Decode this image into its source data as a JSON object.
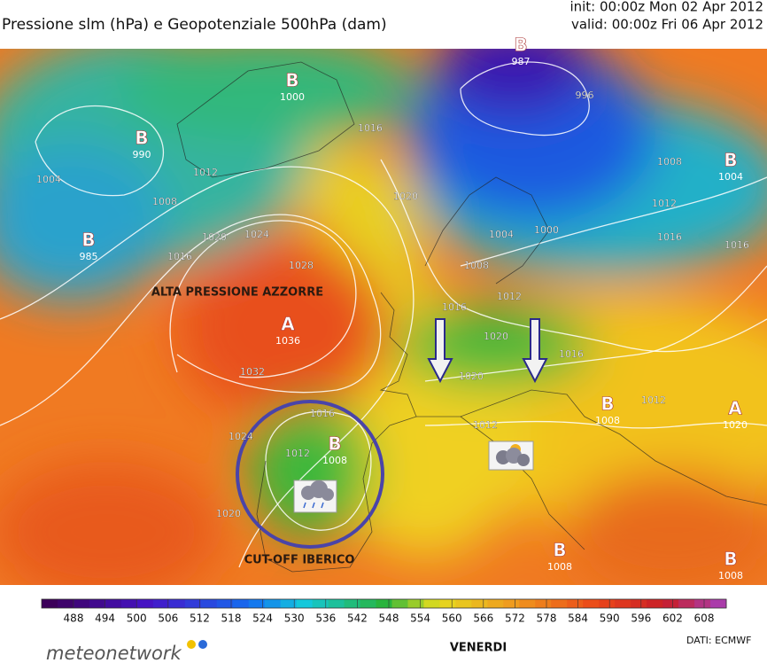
{
  "header": {
    "title": "Pressione slm (hPa) e Geopotenziale 500hPa (dam)",
    "init": "init: 00:00z Mon 02 Apr 2012",
    "valid": "valid: 00:00z Fri 06 Apr 2012"
  },
  "pressure_centers": [
    {
      "letter": "B",
      "value": 987
    },
    {
      "letter": "B",
      "value": 1000
    },
    {
      "letter": "B",
      "value": 990
    },
    {
      "letter": "B",
      "value": 985
    },
    {
      "letter": "B",
      "value": 1004
    },
    {
      "letter": "A",
      "value": 1036
    },
    {
      "letter": "B",
      "value": 1008
    },
    {
      "letter": "B",
      "value": 1008
    },
    {
      "letter": "A",
      "value": 1020
    },
    {
      "letter": "B",
      "value": 1008
    },
    {
      "letter": "B",
      "value": 1008
    }
  ],
  "isobar_labels": [
    1004,
    1008,
    1012,
    1016,
    1020,
    1024,
    1028,
    1032,
    1016,
    1020,
    1016,
    1020,
    1016,
    1020,
    1012,
    1012,
    1008,
    1004,
    1000,
    1008,
    1012,
    1016,
    1016,
    1016,
    1012,
    1020,
    1024,
    996,
    1012
  ],
  "annotations": {
    "high": "ALTA PRESSIONE AZZORRE",
    "cutoff": "CUT-OFF IBERICO",
    "day": "VENERDI"
  },
  "colorbar": {
    "ticks": [
      488,
      494,
      500,
      506,
      512,
      518,
      524,
      530,
      536,
      542,
      548,
      554,
      560,
      566,
      572,
      578,
      584,
      590,
      596,
      602,
      608
    ]
  },
  "footer": {
    "logo": "meteonetwork",
    "source": "DATI:  ECMWF"
  }
}
